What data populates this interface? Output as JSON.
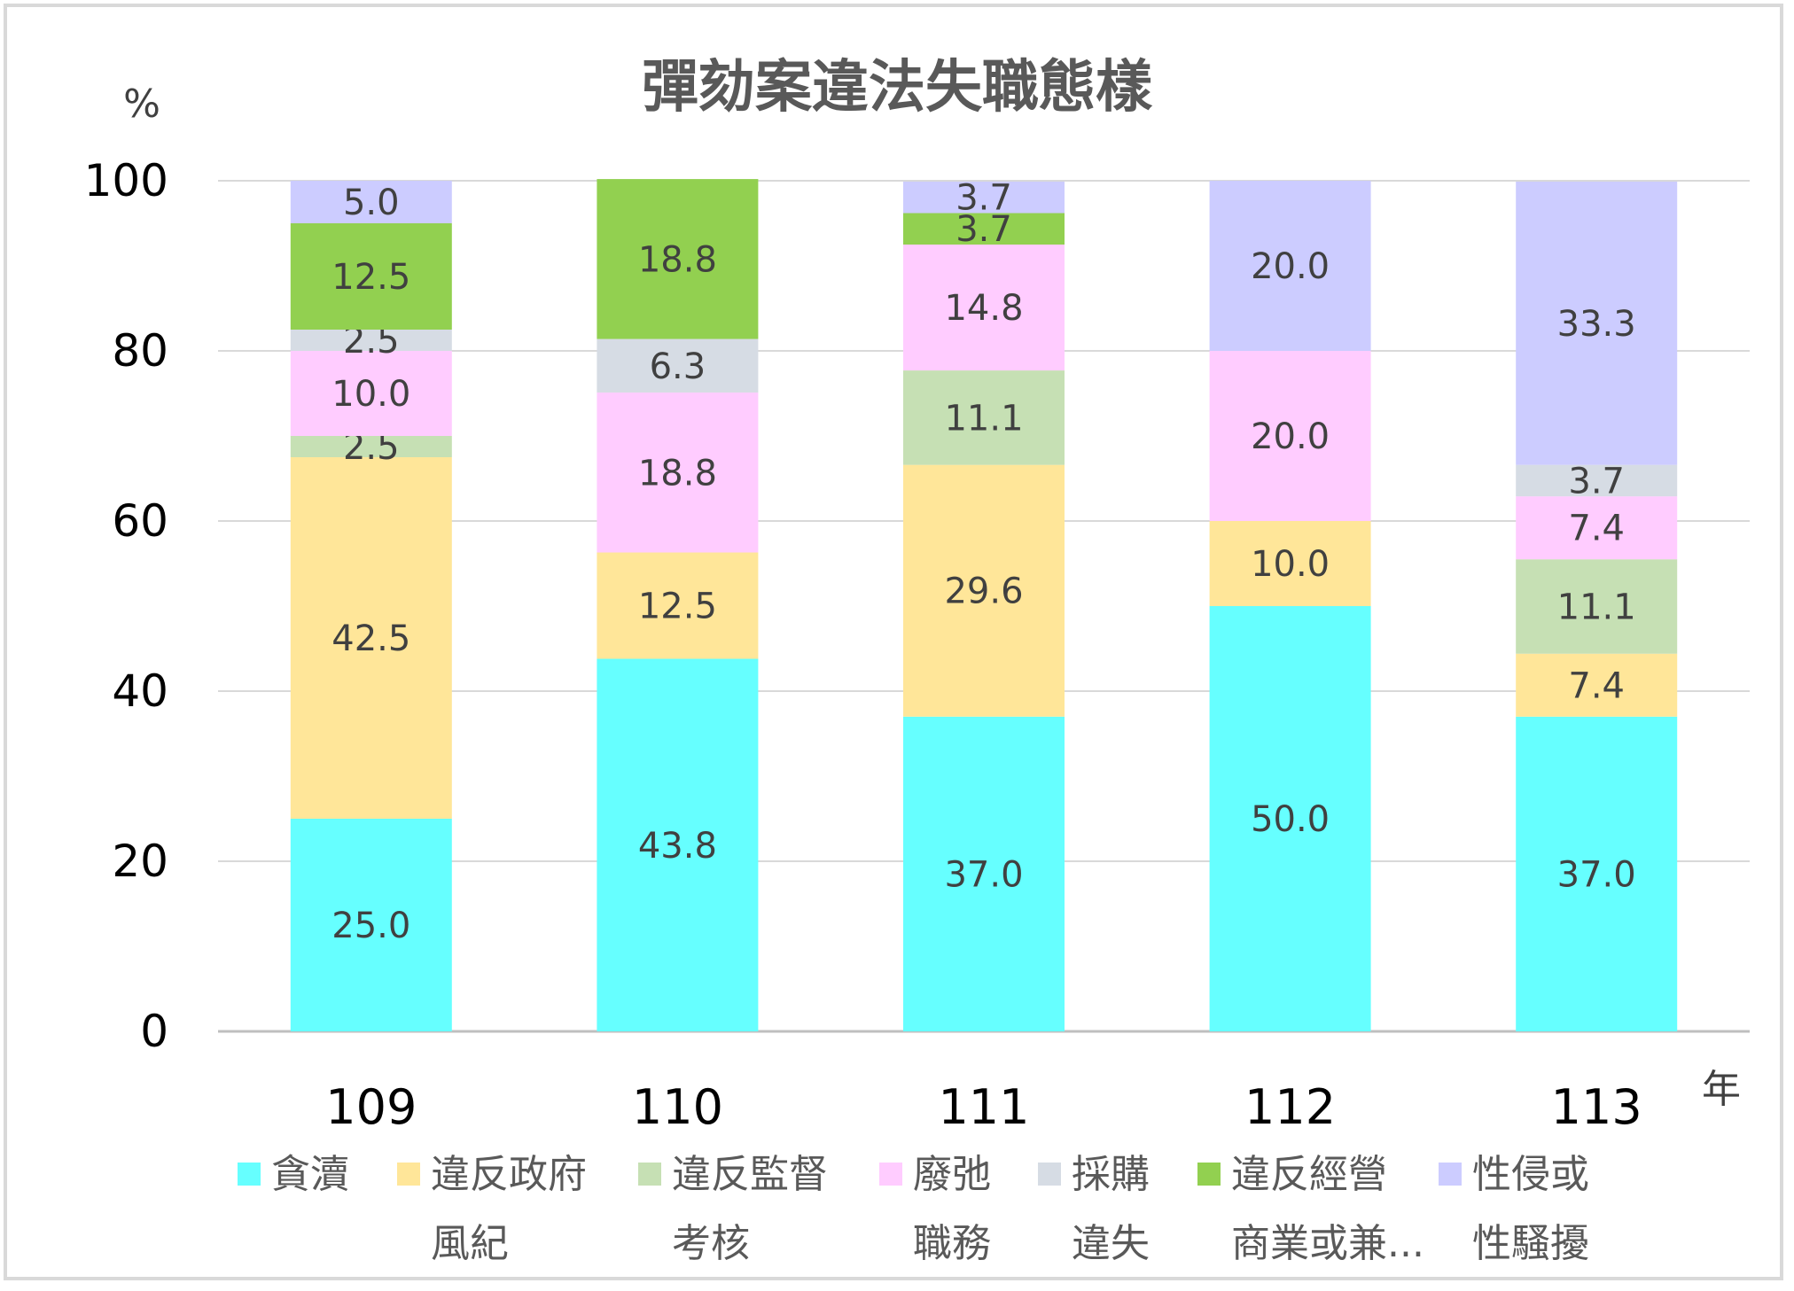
{
  "chart_data": {
    "type": "bar",
    "stacked": true,
    "title": "彈劾案違法失職態樣",
    "ylabel": "%",
    "xlabel": "年",
    "ylim": [
      0,
      100
    ],
    "yticks": [
      0,
      20,
      40,
      60,
      80,
      100
    ],
    "grid": true,
    "legend_position": "bottom",
    "categories": [
      "109",
      "110",
      "111",
      "112",
      "113"
    ],
    "series": [
      {
        "name": "貪瀆",
        "legend_lines": [
          "貪瀆"
        ],
        "color": "#66ffff",
        "values": [
          25.0,
          43.8,
          37.0,
          50.0,
          37.0
        ],
        "labels": [
          "25.0",
          "43.8",
          "37.0",
          "50.0",
          "37.0"
        ]
      },
      {
        "name": "違反政府風紀",
        "legend_lines": [
          "違反政府",
          "風紀"
        ],
        "color": "#ffe699",
        "values": [
          42.5,
          12.5,
          29.6,
          10.0,
          7.4
        ],
        "labels": [
          "42.5",
          "12.5",
          "29.6",
          "10.0",
          "7.4"
        ]
      },
      {
        "name": "違反監督考核",
        "legend_lines": [
          "違反監督",
          "考核"
        ],
        "color": "#c6e0b4",
        "values": [
          2.5,
          0,
          11.1,
          0,
          11.1
        ],
        "labels": [
          "2.5",
          "",
          "11.1",
          "",
          "11.1"
        ]
      },
      {
        "name": "廢弛職務",
        "legend_lines": [
          "廢弛",
          "職務"
        ],
        "color": "#ffccff",
        "values": [
          10.0,
          18.8,
          14.8,
          20.0,
          7.4
        ],
        "labels": [
          "10.0",
          "18.8",
          "14.8",
          "20.0",
          "7.4"
        ]
      },
      {
        "name": "採購違失",
        "legend_lines": [
          "採購",
          "違失"
        ],
        "color": "#d6dce4",
        "values": [
          2.5,
          6.3,
          0,
          0,
          3.7
        ],
        "labels": [
          "2.5",
          "6.3",
          "",
          "",
          "3.7"
        ]
      },
      {
        "name": "違反經營商業或兼...",
        "legend_lines": [
          "違反經營",
          "商業或兼..."
        ],
        "color": "#92d050",
        "values": [
          12.5,
          18.8,
          3.7,
          0,
          0
        ],
        "labels": [
          "12.5",
          "18.8",
          "3.7",
          "",
          ""
        ]
      },
      {
        "name": "性侵或性騷擾",
        "legend_lines": [
          "性侵或",
          "性騷擾"
        ],
        "color": "#ccccff",
        "values": [
          5.0,
          0,
          3.7,
          20.0,
          33.3
        ],
        "labels": [
          "5.0",
          "",
          "3.7",
          "20.0",
          "33.3"
        ]
      }
    ]
  }
}
